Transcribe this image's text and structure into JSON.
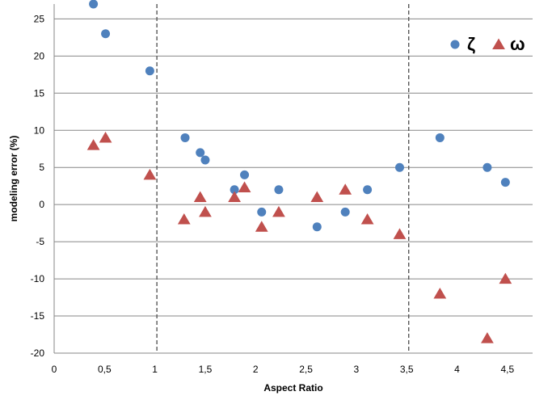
{
  "chart_data": {
    "type": "scatter",
    "xlabel": "Aspect Ratio",
    "ylabel": "modeling error (%)",
    "xlim": [
      0,
      4.75
    ],
    "ylim": [
      -20,
      27
    ],
    "x_ticks": [
      0,
      0.5,
      1,
      1.5,
      2,
      2.5,
      3,
      3.5,
      4,
      4.5
    ],
    "x_tick_labels": [
      "0",
      "0,5",
      "1",
      "1,5",
      "2",
      "2,5",
      "3",
      "3,5",
      "4",
      "4,5"
    ],
    "y_ticks": [
      -20,
      -15,
      -10,
      -5,
      0,
      5,
      10,
      15,
      20,
      25
    ],
    "y_tick_labels": [
      "-20",
      "-15",
      "-10",
      "-5",
      "0",
      "5",
      "10",
      "15",
      "20",
      "25"
    ],
    "grid": "horizontal",
    "legend_position": "top-right",
    "reference_lines_x": [
      1.02,
      3.52
    ],
    "series": [
      {
        "name": "ζ",
        "marker": "circle",
        "color": "#4F81BD",
        "points": [
          [
            0.39,
            27
          ],
          [
            0.51,
            23
          ],
          [
            0.95,
            18
          ],
          [
            1.3,
            9
          ],
          [
            1.45,
            7
          ],
          [
            1.5,
            6
          ],
          [
            1.79,
            2
          ],
          [
            1.89,
            4
          ],
          [
            2.06,
            -1
          ],
          [
            2.23,
            2
          ],
          [
            2.61,
            -3
          ],
          [
            2.89,
            -1
          ],
          [
            3.11,
            2
          ],
          [
            3.43,
            5
          ],
          [
            3.83,
            9
          ],
          [
            4.3,
            5
          ],
          [
            4.48,
            3
          ]
        ]
      },
      {
        "name": "ω",
        "marker": "triangle",
        "color": "#C0504D",
        "points": [
          [
            0.39,
            8
          ],
          [
            0.51,
            9
          ],
          [
            0.95,
            4
          ],
          [
            1.29,
            -2
          ],
          [
            1.45,
            1
          ],
          [
            1.5,
            -1
          ],
          [
            1.79,
            1
          ],
          [
            1.89,
            2.3
          ],
          [
            2.06,
            -3
          ],
          [
            2.23,
            -1
          ],
          [
            2.61,
            1
          ],
          [
            2.89,
            2
          ],
          [
            3.11,
            -2
          ],
          [
            3.43,
            -4
          ],
          [
            3.83,
            -12
          ],
          [
            4.3,
            -18
          ],
          [
            4.48,
            -10
          ]
        ]
      }
    ]
  }
}
